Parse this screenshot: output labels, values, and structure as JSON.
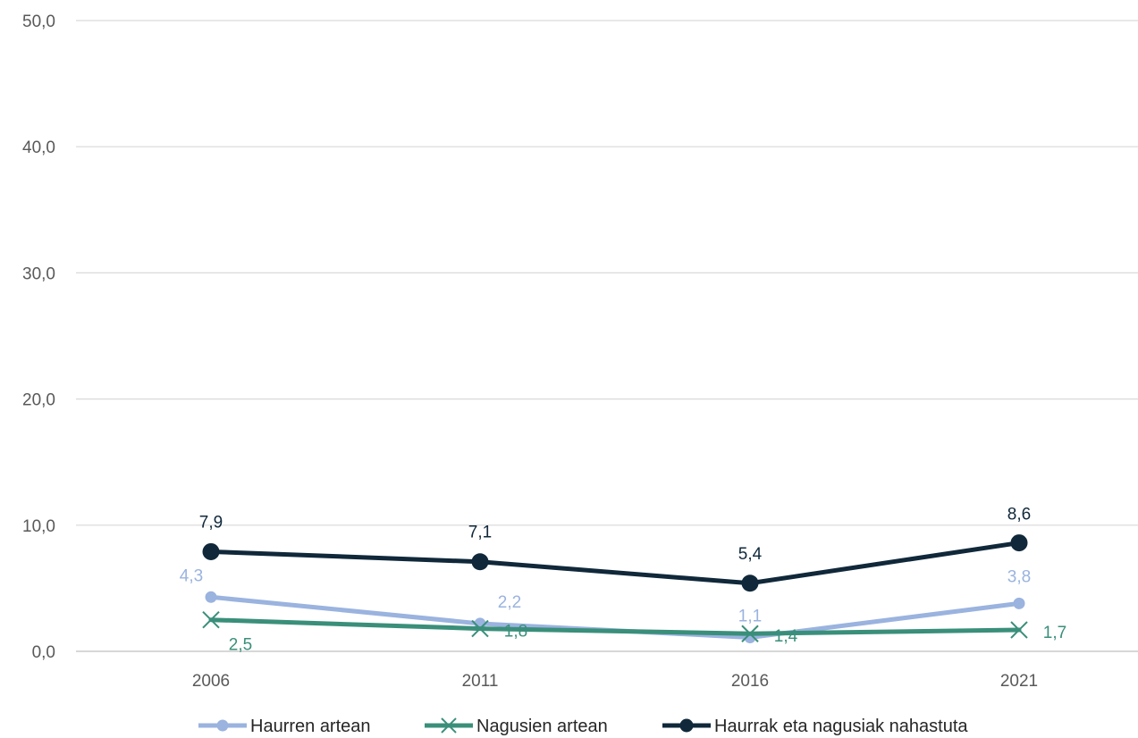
{
  "chart_data": {
    "type": "line",
    "title": "",
    "xlabel": "",
    "ylabel": "",
    "categories": [
      "2006",
      "2011",
      "2016",
      "2021"
    ],
    "y_tick_labels": [
      "0,0",
      "10,0",
      "20,0",
      "30,0",
      "40,0",
      "50,0"
    ],
    "ylim": [
      0,
      50
    ],
    "grid": true,
    "legend_position": "bottom",
    "series": [
      {
        "name": "Haurren artean",
        "values": [
          4.3,
          2.2,
          1.1,
          3.8
        ],
        "labels": [
          "4,3",
          "2,2",
          "1,1",
          "3,8"
        ],
        "color": "#9AB3DF",
        "marker": "circle"
      },
      {
        "name": "Nagusien artean",
        "values": [
          2.5,
          1.8,
          1.4,
          1.7
        ],
        "labels": [
          "2,5",
          "1,8",
          "1,4",
          "1,7"
        ],
        "color": "#3A8F7A",
        "marker": "x"
      },
      {
        "name": "Haurrak eta nagusiak nahastuta",
        "values": [
          7.9,
          7.1,
          5.4,
          8.6
        ],
        "labels": [
          "7,9",
          "7,1",
          "5,4",
          "8,6"
        ],
        "color": "#10283A",
        "marker": "circle"
      }
    ]
  }
}
